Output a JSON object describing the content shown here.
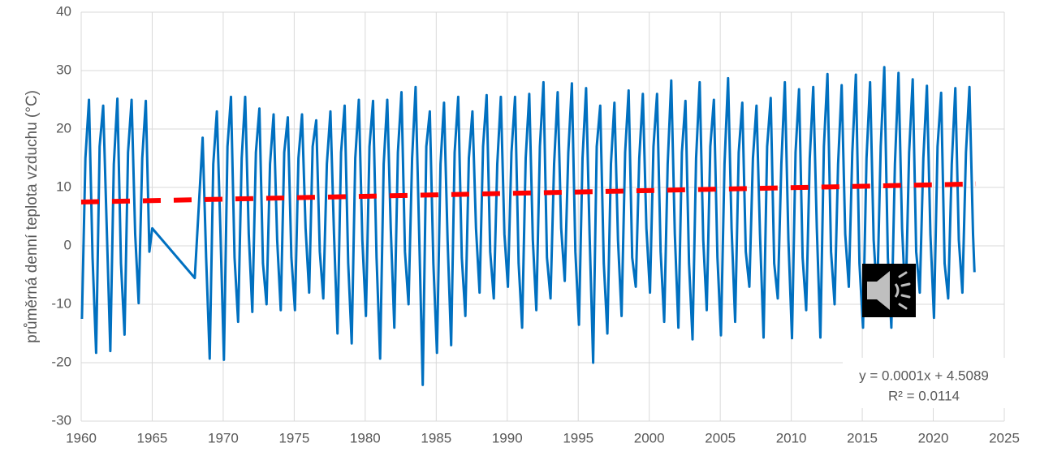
{
  "chart_data": {
    "type": "line",
    "y_label": "průměrná denní teplota vzduchu (°C)",
    "xlim": [
      1960,
      2025
    ],
    "xticks": [
      1960,
      1965,
      1970,
      1975,
      1980,
      1985,
      1990,
      1995,
      2000,
      2005,
      2010,
      2015,
      2020,
      2025
    ],
    "ylim": [
      -30,
      40
    ],
    "yticks": [
      -30,
      -20,
      -10,
      0,
      10,
      20,
      30,
      40
    ],
    "grid": true,
    "series": [
      {
        "color": "#0070c0",
        "x": [
          1960.05,
          1960.3,
          1960.55,
          1960.8,
          1961.05,
          1961.3,
          1961.55,
          1961.8,
          1962.05,
          1962.3,
          1962.55,
          1962.8,
          1963.05,
          1963.3,
          1963.55,
          1963.8,
          1964.05,
          1964.3,
          1964.55,
          1964.8,
          1965.0,
          1968.0,
          1968.55,
          1968.8,
          1969.05,
          1969.3,
          1969.55,
          1969.8,
          1970.05,
          1970.3,
          1970.55,
          1970.8,
          1971.05,
          1971.3,
          1971.55,
          1971.8,
          1972.05,
          1972.3,
          1972.55,
          1972.8,
          1973.05,
          1973.3,
          1973.55,
          1973.8,
          1974.05,
          1974.3,
          1974.55,
          1974.8,
          1975.05,
          1975.3,
          1975.55,
          1975.8,
          1976.05,
          1976.3,
          1976.55,
          1976.8,
          1977.05,
          1977.3,
          1977.55,
          1977.8,
          1978.05,
          1978.3,
          1978.55,
          1978.8,
          1979.05,
          1979.3,
          1979.55,
          1979.8,
          1980.05,
          1980.3,
          1980.55,
          1980.8,
          1981.05,
          1981.3,
          1981.55,
          1981.8,
          1982.05,
          1982.3,
          1982.55,
          1982.8,
          1983.05,
          1983.3,
          1983.55,
          1983.8,
          1984.05,
          1984.3,
          1984.55,
          1984.8,
          1985.05,
          1985.3,
          1985.55,
          1985.8,
          1986.05,
          1986.3,
          1986.55,
          1986.8,
          1987.05,
          1987.3,
          1987.55,
          1987.8,
          1988.05,
          1988.3,
          1988.55,
          1988.8,
          1989.05,
          1989.3,
          1989.55,
          1989.8,
          1990.05,
          1990.3,
          1990.55,
          1990.8,
          1991.05,
          1991.3,
          1991.55,
          1991.8,
          1992.05,
          1992.3,
          1992.55,
          1992.8,
          1993.05,
          1993.3,
          1993.55,
          1993.8,
          1994.05,
          1994.3,
          1994.55,
          1994.8,
          1995.05,
          1995.3,
          1995.55,
          1995.8,
          1996.05,
          1996.3,
          1996.55,
          1996.8,
          1997.05,
          1997.3,
          1997.55,
          1997.8,
          1998.05,
          1998.3,
          1998.55,
          1998.8,
          1999.05,
          1999.3,
          1999.55,
          1999.8,
          2000.05,
          2000.3,
          2000.55,
          2000.8,
          2001.05,
          2001.3,
          2001.55,
          2001.8,
          2002.05,
          2002.3,
          2002.55,
          2002.8,
          2003.05,
          2003.3,
          2003.55,
          2003.8,
          2004.05,
          2004.3,
          2004.55,
          2004.8,
          2005.05,
          2005.3,
          2005.55,
          2005.8,
          2006.05,
          2006.3,
          2006.55,
          2006.8,
          2007.05,
          2007.3,
          2007.55,
          2007.8,
          2008.05,
          2008.3,
          2008.55,
          2008.8,
          2009.05,
          2009.3,
          2009.55,
          2009.8,
          2010.05,
          2010.3,
          2010.55,
          2010.8,
          2011.05,
          2011.3,
          2011.55,
          2011.8,
          2012.05,
          2012.3,
          2012.55,
          2012.8,
          2013.05,
          2013.3,
          2013.55,
          2013.8,
          2014.05,
          2014.3,
          2014.55,
          2014.8,
          2015.05,
          2015.3,
          2015.55,
          2015.8,
          2016.05,
          2016.3,
          2016.55,
          2016.8,
          2017.05,
          2017.3,
          2017.55,
          2017.8,
          2018.05,
          2018.3,
          2018.55,
          2018.8,
          2019.05,
          2019.3,
          2019.55,
          2019.8,
          2020.05,
          2020.3,
          2020.55,
          2020.8,
          2021.05,
          2021.3,
          2021.55,
          2021.8,
          2022.05,
          2022.3,
          2022.55,
          2022.8,
          2022.9
        ],
        "values": [
          -12.5,
          15,
          25,
          -2,
          -18.3,
          17,
          24,
          3,
          -18,
          14,
          25.2,
          -3,
          -15.2,
          16,
          25,
          2,
          -9.8,
          15,
          24.8,
          -1,
          3,
          -5.5,
          18.5,
          -2,
          -19.3,
          14,
          23,
          3,
          -19.5,
          17,
          25.5,
          -2,
          -13,
          15,
          25.5,
          2,
          -11.3,
          16,
          23.5,
          -3,
          -10,
          14,
          22.5,
          1,
          -11,
          16,
          22,
          -2,
          -11,
          15,
          22.5,
          3,
          -8,
          17,
          21.5,
          -1,
          -9,
          14,
          23,
          2,
          -15,
          16,
          24,
          -3,
          -16.7,
          15,
          25,
          1,
          -12,
          17,
          24.8,
          -2,
          -19.3,
          14,
          25,
          3,
          -14,
          16,
          26.3,
          -1,
          -10,
          15,
          27.2,
          2,
          -23.8,
          17,
          23,
          -3,
          -18.3,
          14,
          24.5,
          1,
          -17,
          16,
          25.5,
          -2,
          -12,
          15,
          23,
          3,
          -8,
          17,
          25.8,
          -1,
          -9,
          14,
          25.5,
          2,
          -7,
          16,
          25.5,
          -3,
          -14,
          15,
          26,
          1,
          -11,
          17,
          28,
          -2,
          -9,
          14,
          26.3,
          3,
          -6,
          16,
          27.8,
          -1,
          -13.5,
          15,
          27,
          2,
          -20,
          17,
          24,
          -3,
          -15,
          14,
          24.5,
          1,
          -12,
          16,
          26.6,
          -2,
          -7,
          15,
          26,
          3,
          -8,
          17,
          26,
          -1,
          -13,
          14,
          28.3,
          2,
          -14,
          16,
          24.8,
          -3,
          -16,
          15,
          28,
          1,
          -11,
          17,
          25,
          -2,
          -15.3,
          14,
          28.7,
          3,
          -13,
          16,
          24.5,
          -1,
          -7,
          15,
          24,
          2,
          -15.7,
          17,
          25.3,
          -3,
          -9,
          14,
          28,
          1,
          -15.8,
          16,
          26.8,
          -2,
          -11,
          15,
          27.2,
          3,
          -15.7,
          17,
          29.4,
          -1,
          -10,
          14,
          27.5,
          2,
          -7,
          16,
          29.3,
          -3,
          -14,
          15,
          28,
          1,
          -9,
          17,
          30.6,
          -2,
          -14,
          14,
          29.6,
          3,
          -10,
          16,
          28.5,
          -1,
          -8,
          15,
          27.4,
          2,
          -12.3,
          17,
          26.2,
          -3,
          -9,
          14,
          27,
          1,
          -8,
          16,
          27.2,
          2,
          -4.5
        ]
      }
    ],
    "trendline": {
      "x": [
        1960,
        2023
      ],
      "values": [
        7.5,
        10.6
      ],
      "color": "#ff0000"
    },
    "annotations": [
      "y = 0.0001x + 4.5089",
      "R² = 0.0114"
    ]
  }
}
